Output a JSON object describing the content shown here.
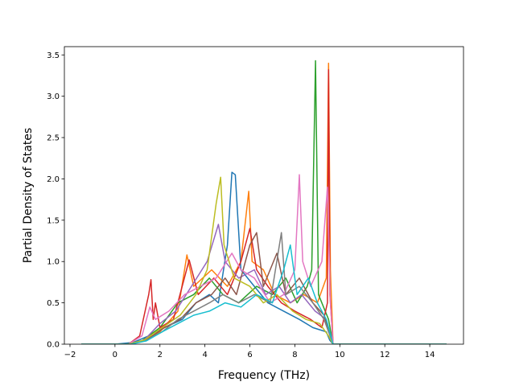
{
  "chart_data": {
    "type": "line",
    "title": "",
    "xlabel": "Frequency (THz)",
    "ylabel": "Partial Density of States",
    "xlim": [
      -2.25,
      15.5
    ],
    "ylim": [
      0,
      3.6
    ],
    "xticks": [
      -2,
      0,
      2,
      4,
      6,
      8,
      10,
      12,
      14
    ],
    "yticks": [
      0.0,
      0.5,
      1.0,
      1.5,
      2.0,
      2.5,
      3.0,
      3.5
    ],
    "xtick_labels": [
      "−2",
      "0",
      "2",
      "4",
      "6",
      "8",
      "10",
      "12",
      "14"
    ],
    "ytick_labels": [
      "0.0",
      "0.5",
      "1.0",
      "1.5",
      "2.0",
      "2.5",
      "3.0",
      "3.5"
    ],
    "grid": false,
    "legend": "none",
    "x_range_of_data": [
      -1.5,
      14.75
    ],
    "series_colors": [
      "#1f77b4",
      "#ff7f0e",
      "#2ca02c",
      "#d62728",
      "#9467bd",
      "#8c564b",
      "#e377c2",
      "#7f7f7f",
      "#bcbd22",
      "#17becf"
    ],
    "series": [
      {
        "color": "#1f77b4",
        "points": [
          [
            -1.5,
            0
          ],
          [
            0,
            0
          ],
          [
            0.8,
            0.02
          ],
          [
            1.5,
            0.1
          ],
          [
            2.2,
            0.2
          ],
          [
            3,
            0.3
          ],
          [
            3.6,
            0.5
          ],
          [
            4.2,
            0.6
          ],
          [
            4.6,
            0.5
          ],
          [
            5,
            1.2
          ],
          [
            5.2,
            2.08
          ],
          [
            5.35,
            2.05
          ],
          [
            5.6,
            0.9
          ],
          [
            6.2,
            0.7
          ],
          [
            6.8,
            0.5
          ],
          [
            7.5,
            0.4
          ],
          [
            8.2,
            0.3
          ],
          [
            8.8,
            0.2
          ],
          [
            9.4,
            0.15
          ],
          [
            9.55,
            0.05
          ],
          [
            9.7,
            0
          ],
          [
            14.75,
            0
          ]
        ]
      },
      {
        "color": "#ff7f0e",
        "points": [
          [
            -1.5,
            0
          ],
          [
            0.5,
            0
          ],
          [
            1.2,
            0.03
          ],
          [
            2,
            0.15
          ],
          [
            2.8,
            0.4
          ],
          [
            3.2,
            1.08
          ],
          [
            3.5,
            0.7
          ],
          [
            4.3,
            0.9
          ],
          [
            5,
            0.7
          ],
          [
            5.6,
            1.0
          ],
          [
            5.95,
            1.85
          ],
          [
            6.1,
            1.0
          ],
          [
            6.6,
            0.9
          ],
          [
            7.1,
            0.6
          ],
          [
            7.8,
            0.5
          ],
          [
            8.4,
            0.6
          ],
          [
            9,
            0.5
          ],
          [
            9.4,
            0.8
          ],
          [
            9.5,
            3.4
          ],
          [
            9.58,
            0.9
          ],
          [
            9.7,
            0
          ],
          [
            14.75,
            0
          ]
        ]
      },
      {
        "color": "#2ca02c",
        "points": [
          [
            -1.5,
            0
          ],
          [
            0.5,
            0
          ],
          [
            1.2,
            0.04
          ],
          [
            2,
            0.2
          ],
          [
            2.8,
            0.5
          ],
          [
            3.5,
            0.6
          ],
          [
            4.2,
            0.8
          ],
          [
            4.8,
            0.6
          ],
          [
            5.5,
            0.5
          ],
          [
            6.3,
            0.7
          ],
          [
            7,
            0.6
          ],
          [
            7.6,
            0.8
          ],
          [
            8.1,
            0.5
          ],
          [
            8.55,
            0.7
          ],
          [
            8.75,
            0.9
          ],
          [
            8.92,
            3.43
          ],
          [
            9.05,
            0.6
          ],
          [
            9.5,
            0.3
          ],
          [
            9.7,
            0
          ],
          [
            14.75,
            0
          ]
        ]
      },
      {
        "color": "#d62728",
        "points": [
          [
            -1.5,
            0
          ],
          [
            0.6,
            0
          ],
          [
            1.1,
            0.1
          ],
          [
            1.5,
            0.6
          ],
          [
            1.6,
            0.78
          ],
          [
            1.7,
            0.3
          ],
          [
            1.8,
            0.5
          ],
          [
            2,
            0.2
          ],
          [
            2.6,
            0.3
          ],
          [
            3.3,
            1.02
          ],
          [
            3.7,
            0.6
          ],
          [
            4.4,
            0.8
          ],
          [
            5,
            0.6
          ],
          [
            5.6,
            1.0
          ],
          [
            6,
            1.4
          ],
          [
            6.3,
            0.9
          ],
          [
            6.8,
            0.7
          ],
          [
            7.4,
            0.5
          ],
          [
            8,
            0.4
          ],
          [
            8.7,
            0.3
          ],
          [
            9.2,
            0.2
          ],
          [
            9.45,
            0.5
          ],
          [
            9.5,
            3.32
          ],
          [
            9.56,
            0.6
          ],
          [
            9.7,
            0
          ],
          [
            14.75,
            0
          ]
        ]
      },
      {
        "color": "#9467bd",
        "points": [
          [
            -1.5,
            0
          ],
          [
            0.6,
            0
          ],
          [
            1.3,
            0.05
          ],
          [
            2,
            0.25
          ],
          [
            2.7,
            0.4
          ],
          [
            3.4,
            0.7
          ],
          [
            4.1,
            1.0
          ],
          [
            4.6,
            1.45
          ],
          [
            4.9,
            1.0
          ],
          [
            5.5,
            0.8
          ],
          [
            6.2,
            0.9
          ],
          [
            6.7,
            0.6
          ],
          [
            7.3,
            0.7
          ],
          [
            7.8,
            0.5
          ],
          [
            8.3,
            0.6
          ],
          [
            8.9,
            0.4
          ],
          [
            9.4,
            0.3
          ],
          [
            9.7,
            0
          ],
          [
            14.75,
            0
          ]
        ]
      },
      {
        "color": "#8c564b",
        "points": [
          [
            -1.5,
            0
          ],
          [
            0.7,
            0
          ],
          [
            1.4,
            0.05
          ],
          [
            2.2,
            0.2
          ],
          [
            2.9,
            0.3
          ],
          [
            3.6,
            0.5
          ],
          [
            4.3,
            0.6
          ],
          [
            4.9,
            0.8
          ],
          [
            5.4,
            0.6
          ],
          [
            6,
            1.2
          ],
          [
            6.3,
            1.35
          ],
          [
            6.6,
            0.7
          ],
          [
            7.2,
            1.1
          ],
          [
            7.6,
            0.6
          ],
          [
            8.2,
            0.8
          ],
          [
            8.8,
            0.5
          ],
          [
            9.3,
            0.35
          ],
          [
            9.7,
            0
          ],
          [
            14.75,
            0
          ]
        ]
      },
      {
        "color": "#e377c2",
        "points": [
          [
            -1.5,
            0
          ],
          [
            0.6,
            0
          ],
          [
            1.2,
            0.1
          ],
          [
            1.55,
            0.45
          ],
          [
            1.8,
            0.3
          ],
          [
            2.4,
            0.4
          ],
          [
            3.1,
            0.6
          ],
          [
            3.8,
            0.7
          ],
          [
            4.5,
            0.8
          ],
          [
            5.2,
            1.1
          ],
          [
            5.6,
            0.9
          ],
          [
            6.2,
            0.8
          ],
          [
            6.9,
            0.5
          ],
          [
            7.5,
            0.6
          ],
          [
            8,
            0.9
          ],
          [
            8.2,
            2.05
          ],
          [
            8.35,
            1.0
          ],
          [
            8.7,
            0.7
          ],
          [
            9.2,
            1.0
          ],
          [
            9.45,
            1.9
          ],
          [
            9.58,
            0.5
          ],
          [
            9.7,
            0
          ],
          [
            14.75,
            0
          ]
        ]
      },
      {
        "color": "#7f7f7f",
        "points": [
          [
            -1.5,
            0
          ],
          [
            0.7,
            0
          ],
          [
            1.4,
            0.05
          ],
          [
            2.1,
            0.15
          ],
          [
            2.8,
            0.3
          ],
          [
            3.5,
            0.4
          ],
          [
            4.2,
            0.5
          ],
          [
            4.8,
            0.6
          ],
          [
            5.5,
            0.5
          ],
          [
            6.2,
            0.6
          ],
          [
            6.9,
            0.5
          ],
          [
            7.4,
            1.35
          ],
          [
            7.6,
            0.6
          ],
          [
            8.2,
            0.7
          ],
          [
            8.8,
            0.5
          ],
          [
            9.3,
            0.3
          ],
          [
            9.7,
            0
          ],
          [
            14.75,
            0
          ]
        ]
      },
      {
        "color": "#bcbd22",
        "points": [
          [
            -1.5,
            0
          ],
          [
            0.6,
            0
          ],
          [
            1.3,
            0.05
          ],
          [
            2.1,
            0.2
          ],
          [
            2.9,
            0.35
          ],
          [
            3.6,
            0.6
          ],
          [
            4.1,
            0.9
          ],
          [
            4.5,
            1.7
          ],
          [
            4.7,
            2.02
          ],
          [
            4.85,
            1.2
          ],
          [
            5.3,
            0.8
          ],
          [
            6,
            0.7
          ],
          [
            6.6,
            0.5
          ],
          [
            7.2,
            0.6
          ],
          [
            7.9,
            0.4
          ],
          [
            8.5,
            0.3
          ],
          [
            9.1,
            0.25
          ],
          [
            9.5,
            0.1
          ],
          [
            9.7,
            0
          ],
          [
            14.75,
            0
          ]
        ]
      },
      {
        "color": "#17becf",
        "points": [
          [
            -1.5,
            0
          ],
          [
            0.7,
            0
          ],
          [
            1.4,
            0.04
          ],
          [
            2.1,
            0.15
          ],
          [
            2.8,
            0.25
          ],
          [
            3.5,
            0.35
          ],
          [
            4.2,
            0.4
          ],
          [
            4.9,
            0.5
          ],
          [
            5.6,
            0.45
          ],
          [
            6.3,
            0.6
          ],
          [
            7,
            0.5
          ],
          [
            7.5,
            0.9
          ],
          [
            7.8,
            1.2
          ],
          [
            8.1,
            0.6
          ],
          [
            8.6,
            0.8
          ],
          [
            9,
            0.5
          ],
          [
            9.4,
            0.3
          ],
          [
            9.7,
            0
          ],
          [
            14.75,
            0
          ]
        ]
      }
    ]
  }
}
